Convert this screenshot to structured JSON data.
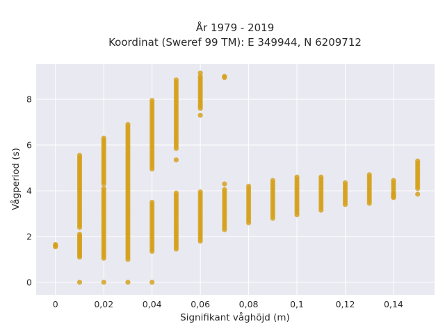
{
  "chart_data": {
    "type": "scatter",
    "title": "År 1979 - 2019",
    "subtitle": "Koordinat (Sweref 99 TM): E 349944, N 6209712",
    "xlabel": "Signifikant våghöjd (m)",
    "ylabel": "Vågperiod (s)",
    "xlim": [
      -0.008,
      0.157
    ],
    "ylim": [
      -0.55,
      9.55
    ],
    "x_ticks": [
      "0",
      "0,02",
      "0,04",
      "0,06",
      "0,08",
      "0,1",
      "0,12",
      "0,14"
    ],
    "x_tick_values": [
      0,
      0.02,
      0.04,
      0.06,
      0.08,
      0.1,
      0.12,
      0.14
    ],
    "y_ticks": [
      "0",
      "2",
      "4",
      "6",
      "8"
    ],
    "y_tick_values": [
      0,
      2,
      4,
      6,
      8
    ],
    "grid": true,
    "legend": "none",
    "colors": {
      "marker": "#d4a017",
      "plot_bg": "#e9e9f1",
      "grid": "#ffffff"
    },
    "series": [
      {
        "point_groups": [
          {
            "x": 0.0,
            "y": [
              1.55,
              1.6,
              1.65
            ]
          },
          {
            "x": 0.01,
            "y": [
              0.0
            ]
          },
          {
            "x": 0.01,
            "y_range": [
              1.1,
              2.1
            ],
            "n": 14
          },
          {
            "x": 0.01,
            "y_range": [
              2.4,
              3.9
            ],
            "n": 16
          },
          {
            "x": 0.01,
            "y_range": [
              4.0,
              5.55
            ],
            "n": 18
          },
          {
            "x": 0.02,
            "y": [
              0.0
            ]
          },
          {
            "x": 0.02,
            "y_range": [
              1.05,
              4.1
            ],
            "n": 32
          },
          {
            "x": 0.02,
            "y_range": [
              4.3,
              6.3
            ],
            "n": 22
          },
          {
            "x": 0.03,
            "y": [
              0.0
            ]
          },
          {
            "x": 0.03,
            "y_range": [
              1.0,
              3.9
            ],
            "n": 30
          },
          {
            "x": 0.03,
            "y_range": [
              4.0,
              6.9
            ],
            "n": 30
          },
          {
            "x": 0.04,
            "y": [
              0.0
            ]
          },
          {
            "x": 0.04,
            "y_range": [
              1.35,
              3.5
            ],
            "n": 22
          },
          {
            "x": 0.04,
            "y_range": [
              4.95,
              7.95
            ],
            "n": 30
          },
          {
            "x": 0.05,
            "y_range": [
              1.45,
              3.9
            ],
            "n": 26
          },
          {
            "x": 0.05,
            "y_range": [
              5.85,
              8.85
            ],
            "n": 30
          },
          {
            "x": 0.05,
            "y": [
              5.35
            ]
          },
          {
            "x": 0.06,
            "y_range": [
              1.8,
              3.95
            ],
            "n": 22
          },
          {
            "x": 0.06,
            "y_range": [
              7.6,
              9.0
            ],
            "n": 16
          },
          {
            "x": 0.06,
            "y": [
              7.3,
              9.15
            ]
          },
          {
            "x": 0.07,
            "y_range": [
              2.3,
              4.05
            ],
            "n": 18
          },
          {
            "x": 0.07,
            "y": [
              4.3,
              8.95,
              9.0
            ]
          },
          {
            "x": 0.08,
            "y_range": [
              2.6,
              4.2
            ],
            "n": 16
          },
          {
            "x": 0.09,
            "y_range": [
              2.8,
              4.45
            ],
            "n": 17
          },
          {
            "x": 0.1,
            "y_range": [
              2.95,
              4.6
            ],
            "n": 17
          },
          {
            "x": 0.11,
            "y_range": [
              3.15,
              4.6
            ],
            "n": 15
          },
          {
            "x": 0.12,
            "y_range": [
              3.4,
              4.35
            ],
            "n": 10
          },
          {
            "x": 0.13,
            "y_range": [
              3.45,
              4.7
            ],
            "n": 13
          },
          {
            "x": 0.14,
            "y_range": [
              3.7,
              4.45
            ],
            "n": 8
          },
          {
            "x": 0.14,
            "y": [
              3.75,
              3.85
            ]
          },
          {
            "x": 0.15,
            "y_range": [
              4.1,
              5.3
            ],
            "n": 13
          },
          {
            "x": 0.15,
            "y": [
              3.85
            ]
          }
        ]
      }
    ]
  }
}
